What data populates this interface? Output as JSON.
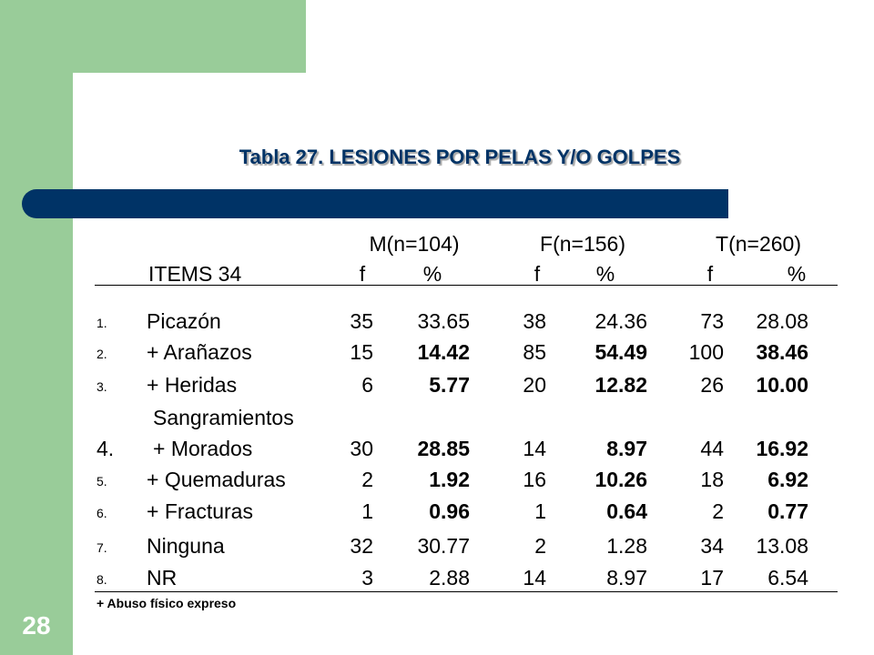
{
  "slide_number": "28",
  "title": "Tabla 27. LESIONES POR PELAS Y/O GOLPES",
  "table": {
    "group_headers": [
      "M(n=104)",
      "F(n=156)",
      "T(n=260)"
    ],
    "items_header": "ITEMS 34",
    "sub_headers": [
      "f",
      "%",
      "f",
      "%",
      "f",
      "%"
    ],
    "rows": [
      {
        "num": "1.",
        "label": "Picazón",
        "m_f": "35",
        "m_pct": "33.65",
        "f_f": "38",
        "f_pct": "24.36",
        "t_f": "73",
        "t_pct": "28.08"
      },
      {
        "num": "2.",
        "label": "+ Arañazos",
        "m_f": "15",
        "m_pct": "14.42",
        "f_f": "85",
        "f_pct": "54.49",
        "t_f": "100",
        "t_pct": "38.46"
      },
      {
        "num": "3.",
        "label": "+ Heridas",
        "m_f": "6",
        "m_pct": "5.77",
        "f_f": "20",
        "f_pct": "12.82",
        "t_f": "26",
        "t_pct": "10.00"
      },
      {
        "num": "",
        "label": "Sangramientos",
        "m_f": "",
        "m_pct": "",
        "f_f": "",
        "f_pct": "",
        "t_f": "",
        "t_pct": ""
      },
      {
        "num": "4.",
        "label": "+ Morados",
        "m_f": "30",
        "m_pct": "28.85",
        "f_f": "14",
        "f_pct": "8.97",
        "t_f": "44",
        "t_pct": "16.92"
      },
      {
        "num": "5.",
        "label": "+ Quemaduras",
        "m_f": "2",
        "m_pct": "1.92",
        "f_f": "16",
        "f_pct": "10.26",
        "t_f": "18",
        "t_pct": "6.92"
      },
      {
        "num": "6.",
        "label": "+ Fracturas",
        "m_f": "1",
        "m_pct": "0.96",
        "f_f": "1",
        "f_pct": "0.64",
        "t_f": "2",
        "t_pct": "0.77"
      },
      {
        "num": "7.",
        "label": "Ninguna",
        "m_f": "32",
        "m_pct": "30.77",
        "f_f": "2",
        "f_pct": "1.28",
        "t_f": "34",
        "t_pct": "13.08"
      },
      {
        "num": "8.",
        "label": "NR",
        "m_f": "3",
        "m_pct": "2.88",
        "f_f": "14",
        "f_pct": "8.97",
        "t_f": "17",
        "t_pct": "6.54"
      }
    ]
  },
  "footnote": "+ Abuso físico expreso",
  "colors": {
    "green": "#99cc99",
    "navy": "#003366"
  }
}
